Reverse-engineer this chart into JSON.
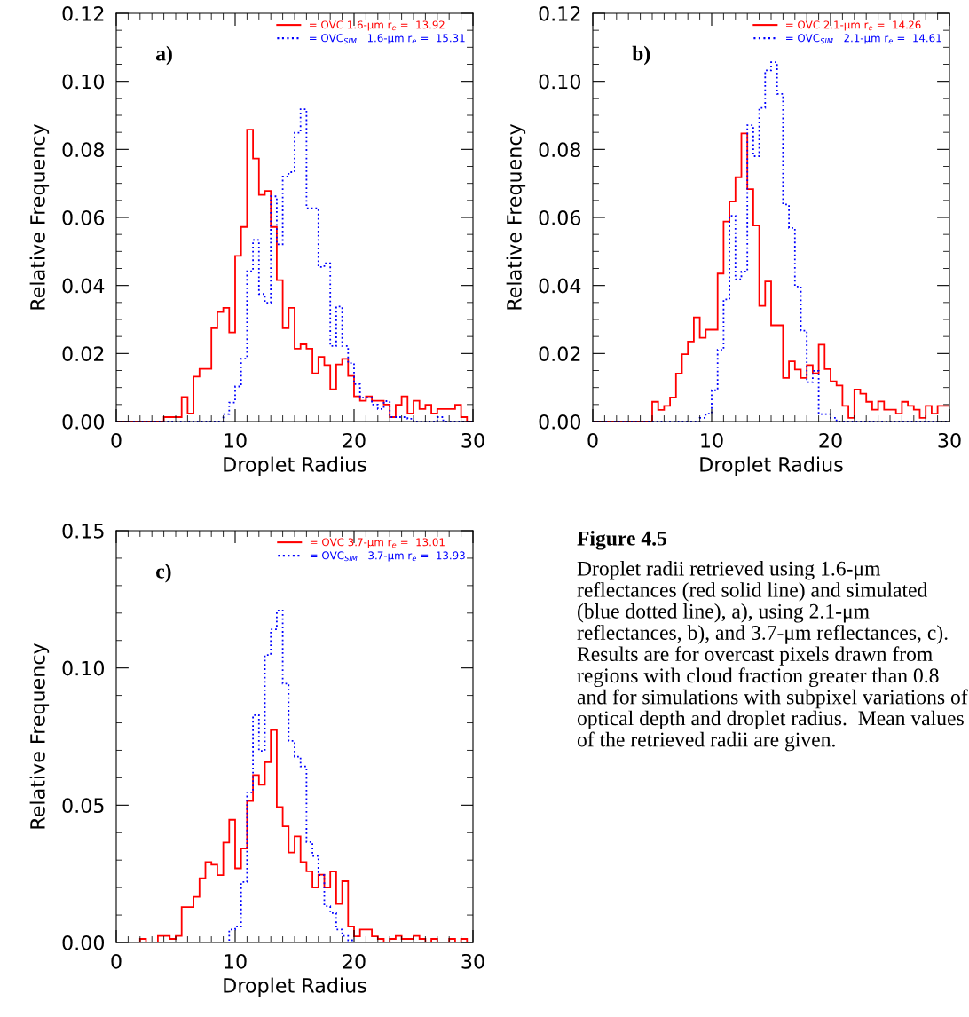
{
  "chart_data": [
    {
      "type": "histogram",
      "xlabel": "Droplet Radius",
      "ylabel": "Relative Frequency",
      "annotations": [
        "a)"
      ],
      "bins": [
        0,
        0.5,
        1,
        1.5,
        2,
        2.5,
        3,
        3.5,
        4,
        4.5,
        5,
        5.5,
        6,
        6.5,
        7,
        7.5,
        8,
        8.5,
        9,
        9.5,
        10,
        10.5,
        11,
        11.5,
        12,
        12.5,
        13,
        13.5,
        14,
        14.5,
        15,
        15.5,
        16,
        16.5,
        17,
        17.5,
        18,
        18.5,
        19,
        19.5,
        20,
        20.5,
        21,
        21.5,
        22,
        22.5,
        23,
        23.5,
        24,
        24.5,
        25,
        25.5,
        26,
        26.5,
        27,
        27.5,
        28,
        28.5,
        29,
        29.5,
        30
      ],
      "xlim": [
        0,
        30
      ],
      "xticks": [
        0,
        10,
        20,
        30
      ],
      "ylim": [
        0,
        0.12
      ],
      "yticks": [
        {
          "value": 0,
          "label": "0.00"
        },
        {
          "value": 0.02,
          "label": "0.02"
        },
        {
          "value": 0.04,
          "label": "0.04"
        },
        {
          "value": 0.06,
          "label": "0.06"
        },
        {
          "value": 0.08,
          "label": "0.08"
        },
        {
          "value": 0.1,
          "label": "0.10"
        },
        {
          "value": 0.12,
          "label": "0.12"
        }
      ],
      "legend": "top right",
      "series": [
        {
          "name": "= OVC 1.6-μm r$_{e}$ =  13.92",
          "color": "#ff0000",
          "line_style": "solid",
          "values": [
            0,
            0,
            0,
            0,
            0,
            0,
            0,
            0,
            0.0013,
            0.0013,
            0.0013,
            0.0072,
            0.0024,
            0.0132,
            0.0155,
            0.0155,
            0.0274,
            0.0322,
            0.0334,
            0.0262,
            0.0487,
            0.0572,
            0.0858,
            0.0773,
            0.0666,
            0.0678,
            0.0572,
            0.0416,
            0.0274,
            0.0334,
            0.0214,
            0.0227,
            0.0214,
            0.0142,
            0.019,
            0.0166,
            0.0095,
            0.0168,
            0.0184,
            0.0134,
            0.0074,
            0.0061,
            0.0074,
            0.0061,
            0.0061,
            0.005,
            0.0013,
            0.0049,
            0.0074,
            0.0024,
            0.0061,
            0.0037,
            0.0049,
            0.0024,
            0.0037,
            0.0037,
            0.0037,
            0.0049,
            0.0013,
            0
          ]
        },
        {
          "name": "= OVC$_{SIM}$   1.6-μm r$_{e}$ =  15.31",
          "color": "#0000ff",
          "line_style": "dotted",
          "values": [
            0,
            0,
            0,
            0,
            0,
            0,
            0,
            0,
            0,
            0,
            0,
            0,
            0,
            0,
            0,
            0,
            0,
            0,
            0.0022,
            0.0056,
            0.0103,
            0.0185,
            0.0442,
            0.0534,
            0.0375,
            0.0349,
            0.0662,
            0.0521,
            0.072,
            0.0733,
            0.0849,
            0.0918,
            0.0627,
            0.0627,
            0.0454,
            0.0465,
            0.0222,
            0.0338,
            0.0222,
            0.0172,
            0.011,
            0.007,
            0.007,
            0.005,
            0.0037,
            0.006,
            0.0013,
            0.0013,
            0.0013,
            0.0008,
            0,
            0,
            0,
            0,
            0.0013,
            0,
            0,
            0,
            0,
            0
          ]
        }
      ]
    },
    {
      "type": "histogram",
      "xlabel": "Droplet Radius",
      "ylabel": "Relative Frequency",
      "annotations": [
        "b)"
      ],
      "bins": [
        0,
        0.5,
        1,
        1.5,
        2,
        2.5,
        3,
        3.5,
        4,
        4.5,
        5,
        5.5,
        6,
        6.5,
        7,
        7.5,
        8,
        8.5,
        9,
        9.5,
        10,
        10.5,
        11,
        11.5,
        12,
        12.5,
        13,
        13.5,
        14,
        14.5,
        15,
        15.5,
        16,
        16.5,
        17,
        17.5,
        18,
        18.5,
        19,
        19.5,
        20,
        20.5,
        21,
        21.5,
        22,
        22.5,
        23,
        23.5,
        24,
        24.5,
        25,
        25.5,
        26,
        26.5,
        27,
        27.5,
        28,
        28.5,
        29,
        29.5,
        30
      ],
      "xlim": [
        0,
        30
      ],
      "xticks": [
        0,
        10,
        20,
        30
      ],
      "ylim": [
        0,
        0.12
      ],
      "yticks": [
        {
          "value": 0,
          "label": "0.00"
        },
        {
          "value": 0.02,
          "label": "0.02"
        },
        {
          "value": 0.04,
          "label": "0.04"
        },
        {
          "value": 0.06,
          "label": "0.06"
        },
        {
          "value": 0.08,
          "label": "0.08"
        },
        {
          "value": 0.1,
          "label": "0.10"
        },
        {
          "value": 0.12,
          "label": "0.12"
        }
      ],
      "legend": "top right",
      "series": [
        {
          "name": "= OVC 2.1-μm r$_{e}$ =  14.26",
          "color": "#ff0000",
          "line_style": "solid",
          "values": [
            0,
            0,
            0,
            0,
            0,
            0,
            0,
            0,
            0,
            0,
            0.0058,
            0.0034,
            0.0046,
            0.0071,
            0.0141,
            0.0198,
            0.0235,
            0.0306,
            0.0246,
            0.027,
            0.027,
            0.0435,
            0.0588,
            0.0647,
            0.0718,
            0.0847,
            0.0683,
            0.0576,
            0.034,
            0.0412,
            0.0283,
            0.0283,
            0.0128,
            0.0177,
            0.0153,
            0.0128,
            0.0166,
            0.0142,
            0.0226,
            0.0154,
            0.0118,
            0.0106,
            0.0046,
            0.0011,
            0.0094,
            0.0082,
            0.0058,
            0.0035,
            0.0059,
            0.0035,
            0.0035,
            0.0023,
            0.0058,
            0.0046,
            0.0035,
            0.0011,
            0.0046,
            0.0023,
            0.0046,
            0.0046
          ]
        },
        {
          "name": "= OVC$_{SIM}$   2.1-μm r$_{e}$ =  14.61",
          "color": "#0000ff",
          "line_style": "dotted",
          "values": [
            0,
            0,
            0,
            0,
            0,
            0,
            0,
            0,
            0,
            0,
            0,
            0,
            0,
            0,
            0,
            0,
            0,
            0,
            0.0011,
            0.0023,
            0.0092,
            0.0211,
            0.0359,
            0.0605,
            0.0418,
            0.0441,
            0.0871,
            0.078,
            0.0922,
            0.1032,
            0.1056,
            0.0963,
            0.0638,
            0.0569,
            0.0397,
            0.0267,
            0.0116,
            0.0149,
            0.0022,
            0.0022,
            0.0011,
            0,
            0,
            0,
            0,
            0,
            0,
            0,
            0,
            0,
            0,
            0,
            0,
            0,
            0,
            0,
            0,
            0,
            0,
            0
          ]
        }
      ]
    },
    {
      "type": "histogram",
      "xlabel": "Droplet Radius",
      "ylabel": "Relative Frequency",
      "annotations": [
        "c)"
      ],
      "bins": [
        0,
        0.5,
        1,
        1.5,
        2,
        2.5,
        3,
        3.5,
        4,
        4.5,
        5,
        5.5,
        6,
        6.5,
        7,
        7.5,
        8,
        8.5,
        9,
        9.5,
        10,
        10.5,
        11,
        11.5,
        12,
        12.5,
        13,
        13.5,
        14,
        14.5,
        15,
        15.5,
        16,
        16.5,
        17,
        17.5,
        18,
        18.5,
        19,
        19.5,
        20,
        20.5,
        21,
        21.5,
        22,
        22.5,
        23,
        23.5,
        24,
        24.5,
        25,
        25.5,
        26,
        26.5,
        27,
        27.5,
        28,
        28.5,
        29,
        29.5,
        30
      ],
      "xlim": [
        0,
        30
      ],
      "xticks": [
        0,
        10,
        20,
        30
      ],
      "ylim": [
        0,
        0.15
      ],
      "yticks": [
        {
          "value": 0,
          "label": "0.00"
        },
        {
          "value": 0.05,
          "label": "0.05"
        },
        {
          "value": 0.1,
          "label": "0.10"
        },
        {
          "value": 0.15,
          "label": "0.15"
        }
      ],
      "legend": "top right",
      "series": [
        {
          "name": "= OVC 3.7-μm r$_{e}$ =  13.01",
          "color": "#ff0000",
          "line_style": "solid",
          "values": [
            0,
            0,
            0,
            0,
            0.0013,
            0,
            0,
            0.0024,
            0.0024,
            0.0013,
            0.0024,
            0.0129,
            0.0129,
            0.0166,
            0.0234,
            0.0293,
            0.0283,
            0.0245,
            0.0364,
            0.0447,
            0.027,
            0.0342,
            0.0515,
            0.061,
            0.0574,
            0.0657,
            0.0774,
            0.0493,
            0.0423,
            0.0328,
            0.0387,
            0.0293,
            0.0259,
            0.02,
            0.0247,
            0.02,
            0.0258,
            0.014,
            0.0223,
            0.0058,
            0.0022,
            0.0047,
            0.0047,
            0.0022,
            0.0013,
            0,
            0.0013,
            0.0024,
            0.0013,
            0.0013,
            0.0024,
            0.0013,
            0,
            0.0013,
            0,
            0,
            0.0013,
            0,
            0.0013,
            0
          ]
        },
        {
          "name": "= OVC$_{SIM}$   3.7-μm r$_{e}$ =  13.93",
          "color": "#0000ff",
          "line_style": "dotted",
          "values": [
            0,
            0,
            0,
            0,
            0,
            0,
            0,
            0,
            0,
            0,
            0,
            0,
            0,
            0,
            0,
            0,
            0,
            0,
            0,
            0.0047,
            0.0058,
            0.022,
            0.0547,
            0.0828,
            0.0698,
            0.1047,
            0.1141,
            0.1209,
            0.0943,
            0.0734,
            0.0677,
            0.0641,
            0.0366,
            0.0315,
            0.0245,
            0.0132,
            0.0107,
            0.0047,
            0.0024,
            0.0008,
            0,
            0,
            0,
            0,
            0,
            0,
            0,
            0,
            0,
            0,
            0,
            0,
            0,
            0,
            0,
            0,
            0,
            0,
            0,
            0
          ]
        }
      ]
    },
    {
      "type": "other",
      "title": "Figure 4.5",
      "annotations": [
        "Droplet radii retrieved using 1.6-μm reflectances (red solid line) and simulated (blue dotted line), a), using 2.1-μm reflectances, b), and 3.7-μm reflectances, c).  Results are for overcast pixels drawn from regions with cloud fraction greater than 0.8 and for simulations with subpixel variations of optical depth and droplet radius.  Mean values of the retrieved radii are given."
      ]
    }
  ]
}
